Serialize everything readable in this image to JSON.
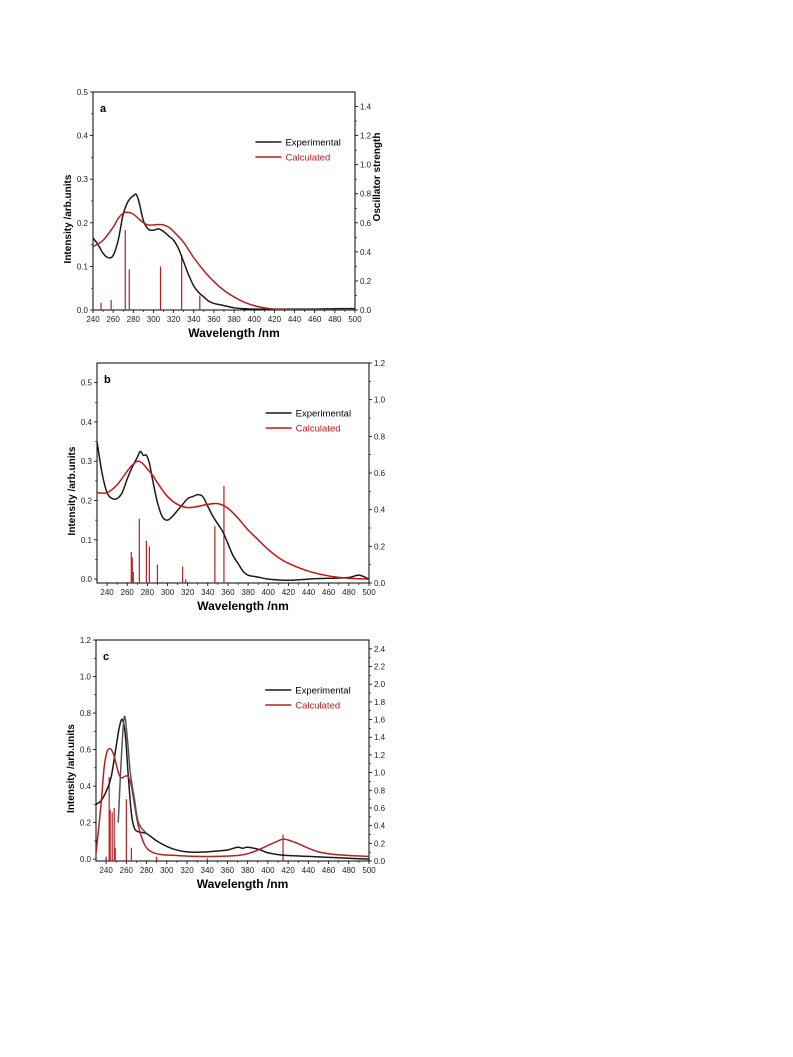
{
  "chart_data": [
    {
      "type": "line",
      "panel_label": "a",
      "xlabel": "Wavelength /nm",
      "ylabel": "Intensity /arb.units",
      "y2label": "Oscillator strength",
      "xlim": [
        240,
        500
      ],
      "ylim": [
        0,
        0.5
      ],
      "y2lim": [
        0,
        1.5
      ],
      "x_ticks": [
        240,
        260,
        280,
        300,
        320,
        340,
        360,
        380,
        400,
        420,
        440,
        460,
        480,
        500
      ],
      "y_ticks": [
        0.0,
        0.1,
        0.2,
        0.3,
        0.4,
        0.5
      ],
      "y_tick_labels": [
        "0.0",
        "0.1",
        "0.2",
        "0.3",
        "0.4",
        "0.5"
      ],
      "y2_ticks": [
        0.0,
        0.2,
        0.4,
        0.6,
        0.8,
        1.0,
        1.2,
        1.4
      ],
      "y2_tick_labels": [
        "0.0",
        "0.2",
        "0.4",
        "0.6",
        "0.8",
        "1.0",
        "1.2",
        "1.4"
      ],
      "legend_position": "top-right",
      "series": [
        {
          "name": "Experimental",
          "color": "#1a1a1a",
          "x": [
            240,
            245,
            250,
            255,
            260,
            265,
            270,
            275,
            280,
            283,
            286,
            290,
            295,
            300,
            305,
            310,
            315,
            320,
            325,
            330,
            335,
            340,
            345,
            350,
            355,
            360,
            370,
            380,
            390,
            400,
            420,
            440,
            460,
            480,
            500
          ],
          "y": [
            0.165,
            0.15,
            0.13,
            0.12,
            0.125,
            0.16,
            0.22,
            0.25,
            0.262,
            0.265,
            0.245,
            0.205,
            0.185,
            0.183,
            0.186,
            0.18,
            0.17,
            0.16,
            0.14,
            0.11,
            0.08,
            0.055,
            0.04,
            0.03,
            0.02,
            0.015,
            0.01,
            0.005,
            0.003,
            0.002,
            0.002,
            0.002,
            0.002,
            0.003,
            0.003
          ]
        },
        {
          "name": "Calculated",
          "color": "#b22222",
          "x": [
            240,
            250,
            260,
            265,
            270,
            275,
            280,
            285,
            290,
            295,
            300,
            305,
            310,
            315,
            320,
            330,
            340,
            350,
            360,
            370,
            380,
            390,
            400,
            410,
            420,
            440,
            460,
            480,
            500
          ],
          "y": [
            0.145,
            0.16,
            0.19,
            0.21,
            0.222,
            0.224,
            0.22,
            0.21,
            0.2,
            0.195,
            0.195,
            0.196,
            0.195,
            0.19,
            0.18,
            0.155,
            0.12,
            0.09,
            0.065,
            0.045,
            0.03,
            0.018,
            0.01,
            0.005,
            0.002,
            0.001,
            0.0,
            0.0,
            0.0
          ]
        }
      ],
      "sticks": {
        "color": "#b22222",
        "x": [
          248,
          258,
          272,
          276,
          307,
          328,
          346
        ],
        "y": [
          0.05,
          0.07,
          0.55,
          0.28,
          0.3,
          0.38,
          0.1
        ]
      }
    },
    {
      "type": "line",
      "panel_label": "b",
      "xlabel": "Wavelength /nm",
      "ylabel": "Intensity /arb.units",
      "y2label": "",
      "xlim": [
        230,
        500
      ],
      "ylim": [
        -0.01,
        0.55
      ],
      "y2lim": [
        0,
        1.2
      ],
      "x_ticks": [
        240,
        260,
        280,
        300,
        320,
        340,
        360,
        380,
        400,
        420,
        440,
        460,
        480,
        500
      ],
      "y_ticks": [
        0.0,
        0.1,
        0.2,
        0.3,
        0.4,
        0.5
      ],
      "y_tick_labels": [
        "0.0",
        "0.1",
        "0.2",
        "0.3",
        "0.4",
        "0.5"
      ],
      "y2_ticks": [
        0.0,
        0.2,
        0.4,
        0.6,
        0.8,
        1.0,
        1.2
      ],
      "y2_tick_labels": [
        "0.0",
        "0.2",
        "0.4",
        "0.6",
        "0.8",
        "1.0",
        "1.2"
      ],
      "legend_position": "top-right",
      "series": [
        {
          "name": "Experimental",
          "color": "#1a1a1a",
          "x": [
            230,
            235,
            240,
            245,
            250,
            255,
            260,
            265,
            270,
            273,
            276,
            279,
            282,
            285,
            290,
            295,
            300,
            305,
            310,
            315,
            320,
            325,
            330,
            335,
            340,
            345,
            350,
            355,
            360,
            365,
            370,
            375,
            380,
            390,
            400,
            420,
            440,
            460,
            480,
            490,
            500
          ],
          "y": [
            0.35,
            0.27,
            0.22,
            0.205,
            0.205,
            0.22,
            0.255,
            0.285,
            0.31,
            0.325,
            0.315,
            0.315,
            0.295,
            0.255,
            0.195,
            0.158,
            0.15,
            0.16,
            0.175,
            0.19,
            0.205,
            0.21,
            0.215,
            0.21,
            0.185,
            0.16,
            0.14,
            0.12,
            0.09,
            0.06,
            0.04,
            0.02,
            0.01,
            0.005,
            0.0,
            -0.003,
            0.0,
            0.002,
            0.004,
            0.01,
            0.0
          ]
        },
        {
          "name": "Calculated",
          "color": "#cc1111",
          "x": [
            230,
            240,
            250,
            260,
            265,
            270,
            275,
            280,
            285,
            290,
            300,
            310,
            320,
            330,
            340,
            350,
            360,
            370,
            380,
            390,
            400,
            410,
            420,
            440,
            460,
            480,
            500
          ],
          "y": [
            0.22,
            0.22,
            0.24,
            0.275,
            0.29,
            0.3,
            0.295,
            0.28,
            0.265,
            0.245,
            0.21,
            0.19,
            0.182,
            0.185,
            0.19,
            0.192,
            0.18,
            0.155,
            0.125,
            0.1,
            0.075,
            0.055,
            0.04,
            0.02,
            0.008,
            0.002,
            0.0
          ]
        }
      ],
      "sticks": {
        "color": "#b22222",
        "x": [
          264,
          265,
          266,
          272,
          279,
          282,
          290,
          315,
          318,
          347,
          356
        ],
        "y": [
          0.17,
          0.14,
          0.06,
          0.35,
          0.23,
          0.2,
          0.1,
          0.09,
          0.02,
          0.31,
          0.53
        ]
      }
    },
    {
      "type": "line",
      "panel_label": "c",
      "xlabel": "Wavelength /nm",
      "ylabel": "Intensity /arb.units",
      "y2label": "",
      "xlim": [
        230,
        500
      ],
      "ylim": [
        -0.01,
        1.2
      ],
      "y2lim": [
        0,
        2.5
      ],
      "x_ticks": [
        240,
        260,
        280,
        300,
        320,
        340,
        360,
        380,
        400,
        420,
        440,
        460,
        480,
        500
      ],
      "y_ticks": [
        0.0,
        0.2,
        0.4,
        0.6,
        0.8,
        1.0,
        1.2
      ],
      "y_tick_labels": [
        "0.0",
        "0.2",
        "0.4",
        "0.6",
        "0.8",
        "1.0",
        "1.2"
      ],
      "y2_ticks": [
        0.0,
        0.2,
        0.4,
        0.6,
        0.8,
        1.0,
        1.2,
        1.4,
        1.6,
        1.8,
        2.0,
        2.2,
        2.4
      ],
      "y2_tick_labels": [
        "0.0",
        "0.2",
        "0.4",
        "0.6",
        "0.8",
        "1.0",
        "1.2",
        "1.4",
        "1.6",
        "1.8",
        "2.0",
        "2.2",
        "2.4"
      ],
      "legend_position": "top-right",
      "series": [
        {
          "name": "Experimental",
          "color": "#1a1a1a",
          "x": [
            230,
            235,
            240,
            245,
            250,
            253,
            256,
            259,
            262,
            265,
            268,
            272,
            280,
            290,
            300,
            310,
            320,
            330,
            340,
            350,
            360,
            370,
            375,
            380,
            390,
            395,
            400,
            410,
            420,
            440,
            460,
            480,
            500
          ],
          "y": [
            0.3,
            0.32,
            0.37,
            0.45,
            0.62,
            0.72,
            0.765,
            0.68,
            0.45,
            0.25,
            0.17,
            0.15,
            0.14,
            0.1,
            0.07,
            0.05,
            0.04,
            0.038,
            0.04,
            0.045,
            0.05,
            0.065,
            0.06,
            0.065,
            0.055,
            0.045,
            0.035,
            0.025,
            0.02,
            0.015,
            0.01,
            0.005,
            0.0
          ]
        },
        {
          "name": "Calculated",
          "color": "#b22222",
          "x": [
            230,
            235,
            238,
            241,
            244,
            247,
            250,
            253,
            256,
            259,
            262,
            265,
            268,
            272,
            278,
            285,
            295,
            310,
            330,
            350,
            370,
            380,
            390,
            400,
            410,
            415,
            420,
            430,
            440,
            450,
            460,
            480,
            500
          ],
          "y": [
            0.03,
            0.3,
            0.5,
            0.59,
            0.605,
            0.58,
            0.52,
            0.46,
            0.445,
            0.455,
            0.45,
            0.4,
            0.3,
            0.18,
            0.08,
            0.04,
            0.025,
            0.02,
            0.015,
            0.015,
            0.02,
            0.03,
            0.05,
            0.075,
            0.1,
            0.11,
            0.105,
            0.085,
            0.06,
            0.04,
            0.03,
            0.02,
            0.015
          ]
        },
        {
          "name": "",
          "color": "#555555",
          "x": [
            252,
            255,
            258,
            261,
            264,
            268,
            272,
            280
          ],
          "y": [
            0.2,
            0.55,
            0.78,
            0.66,
            0.47,
            0.33,
            0.2,
            0.14
          ]
        }
      ],
      "sticks": {
        "color": "#b22222",
        "x": [
          240,
          243,
          244,
          246,
          248,
          249,
          260,
          265,
          290,
          340,
          415
        ],
        "y": [
          0.05,
          0.95,
          0.58,
          0.55,
          0.6,
          0.15,
          0.7,
          0.15,
          0.05,
          0.03,
          0.3
        ]
      }
    }
  ]
}
